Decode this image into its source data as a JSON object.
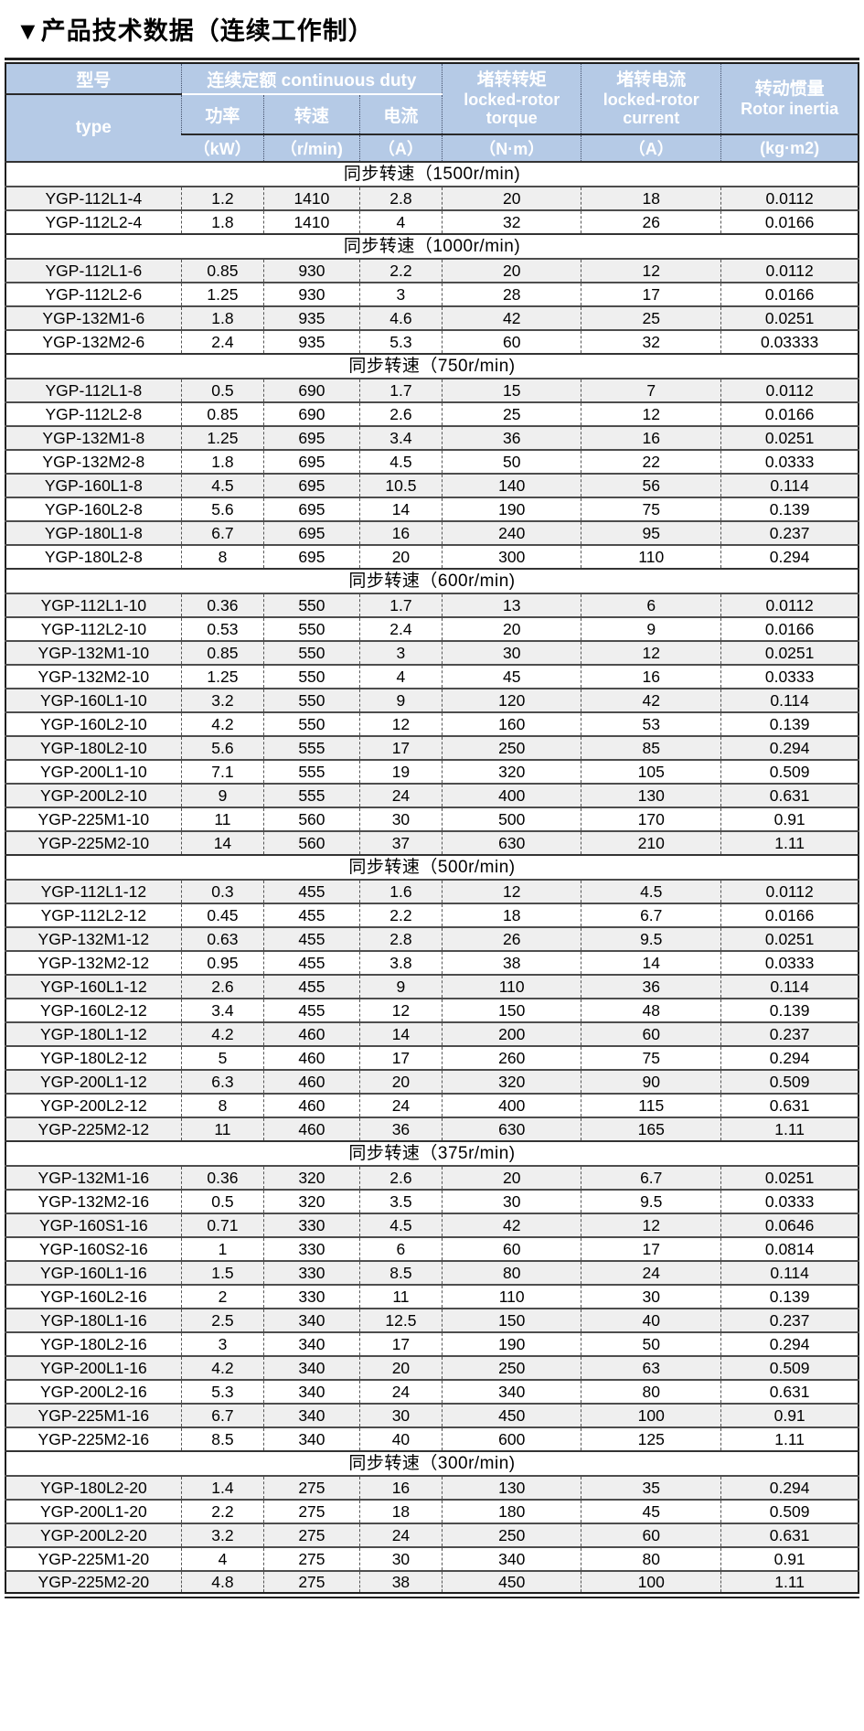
{
  "title": "▼产品技术数据（连续工作制）",
  "colors": {
    "header_bg": "#b5cae6",
    "header_text": "#ffffff",
    "row_shade": "#efefef",
    "row_line": "#4d4d4d",
    "outer_border": "#1f1f1f"
  },
  "table": {
    "header": {
      "model_cn": "型号",
      "model_en": "type",
      "duty_group": "连续定额  continuous duty",
      "power_cn": "功率",
      "speed_cn": "转速",
      "current_cn": "电流",
      "torque_cn": "堵转转矩",
      "torque_en": "locked-rotor torque",
      "lr_current_cn": "堵转电流",
      "lr_current_en": "locked-rotor current",
      "inertia_cn": "转动惯量",
      "inertia_en": "Rotor inertia",
      "units": {
        "power": "（kW）",
        "speed": "（r/min)",
        "current": "（A）",
        "torque": "（N·m）",
        "lr_current": "（A）",
        "inertia": "(kg·m2)"
      }
    },
    "sections": [
      {
        "label": "同步转速（1500r/min)",
        "rows": [
          [
            "YGP-112L1-4",
            "1.2",
            "1410",
            "2.8",
            "20",
            "18",
            "0.0112"
          ],
          [
            "YGP-112L2-4",
            "1.8",
            "1410",
            "4",
            "32",
            "26",
            "0.0166"
          ]
        ]
      },
      {
        "label": "同步转速（1000r/min)",
        "rows": [
          [
            "YGP-112L1-6",
            "0.85",
            "930",
            "2.2",
            "20",
            "12",
            "0.0112"
          ],
          [
            "YGP-112L2-6",
            "1.25",
            "930",
            "3",
            "28",
            "17",
            "0.0166"
          ],
          [
            "YGP-132M1-6",
            "1.8",
            "935",
            "4.6",
            "42",
            "25",
            "0.0251"
          ],
          [
            "YGP-132M2-6",
            "2.4",
            "935",
            "5.3",
            "60",
            "32",
            "0.03333"
          ]
        ]
      },
      {
        "label": "同步转速（750r/min)",
        "rows": [
          [
            "YGP-112L1-8",
            "0.5",
            "690",
            "1.7",
            "15",
            "7",
            "0.0112"
          ],
          [
            "YGP-112L2-8",
            "0.85",
            "690",
            "2.6",
            "25",
            "12",
            "0.0166"
          ],
          [
            "YGP-132M1-8",
            "1.25",
            "695",
            "3.4",
            "36",
            "16",
            "0.0251"
          ],
          [
            "YGP-132M2-8",
            "1.8",
            "695",
            "4.5",
            "50",
            "22",
            "0.0333"
          ],
          [
            "YGP-160L1-8",
            "4.5",
            "695",
            "10.5",
            "140",
            "56",
            "0.114"
          ],
          [
            "YGP-160L2-8",
            "5.6",
            "695",
            "14",
            "190",
            "75",
            "0.139"
          ],
          [
            "YGP-180L1-8",
            "6.7",
            "695",
            "16",
            "240",
            "95",
            "0.237"
          ],
          [
            "YGP-180L2-8",
            "8",
            "695",
            "20",
            "300",
            "110",
            "0.294"
          ]
        ]
      },
      {
        "label": "同步转速（600r/min)",
        "rows": [
          [
            "YGP-112L1-10",
            "0.36",
            "550",
            "1.7",
            "13",
            "6",
            "0.0112"
          ],
          [
            "YGP-112L2-10",
            "0.53",
            "550",
            "2.4",
            "20",
            "9",
            "0.0166"
          ],
          [
            "YGP-132M1-10",
            "0.85",
            "550",
            "3",
            "30",
            "12",
            "0.0251"
          ],
          [
            "YGP-132M2-10",
            "1.25",
            "550",
            "4",
            "45",
            "16",
            "0.0333"
          ],
          [
            "YGP-160L1-10",
            "3.2",
            "550",
            "9",
            "120",
            "42",
            "0.114"
          ],
          [
            "YGP-160L2-10",
            "4.2",
            "550",
            "12",
            "160",
            "53",
            "0.139"
          ],
          [
            "YGP-180L2-10",
            "5.6",
            "555",
            "17",
            "250",
            "85",
            "0.294"
          ],
          [
            "YGP-200L1-10",
            "7.1",
            "555",
            "19",
            "320",
            "105",
            "0.509"
          ],
          [
            "YGP-200L2-10",
            "9",
            "555",
            "24",
            "400",
            "130",
            "0.631"
          ],
          [
            "YGP-225M1-10",
            "11",
            "560",
            "30",
            "500",
            "170",
            "0.91"
          ],
          [
            "YGP-225M2-10",
            "14",
            "560",
            "37",
            "630",
            "210",
            "1.11"
          ]
        ]
      },
      {
        "label": "同步转速（500r/min)",
        "rows": [
          [
            "YGP-112L1-12",
            "0.3",
            "455",
            "1.6",
            "12",
            "4.5",
            "0.0112"
          ],
          [
            "YGP-112L2-12",
            "0.45",
            "455",
            "2.2",
            "18",
            "6.7",
            "0.0166"
          ],
          [
            "YGP-132M1-12",
            "0.63",
            "455",
            "2.8",
            "26",
            "9.5",
            "0.0251"
          ],
          [
            "YGP-132M2-12",
            "0.95",
            "455",
            "3.8",
            "38",
            "14",
            "0.0333"
          ],
          [
            "YGP-160L1-12",
            "2.6",
            "455",
            "9",
            "110",
            "36",
            "0.114"
          ],
          [
            "YGP-160L2-12",
            "3.4",
            "455",
            "12",
            "150",
            "48",
            "0.139"
          ],
          [
            "YGP-180L1-12",
            "4.2",
            "460",
            "14",
            "200",
            "60",
            "0.237"
          ],
          [
            "YGP-180L2-12",
            "5",
            "460",
            "17",
            "260",
            "75",
            "0.294"
          ],
          [
            "YGP-200L1-12",
            "6.3",
            "460",
            "20",
            "320",
            "90",
            "0.509"
          ],
          [
            "YGP-200L2-12",
            "8",
            "460",
            "24",
            "400",
            "115",
            "0.631"
          ],
          [
            "YGP-225M2-12",
            "11",
            "460",
            "36",
            "630",
            "165",
            "1.11"
          ]
        ]
      },
      {
        "label": "同步转速（375r/min)",
        "rows": [
          [
            "YGP-132M1-16",
            "0.36",
            "320",
            "2.6",
            "20",
            "6.7",
            "0.0251"
          ],
          [
            "YGP-132M2-16",
            "0.5",
            "320",
            "3.5",
            "30",
            "9.5",
            "0.0333"
          ],
          [
            "YGP-160S1-16",
            "0.71",
            "330",
            "4.5",
            "42",
            "12",
            "0.0646"
          ],
          [
            "YGP-160S2-16",
            "1",
            "330",
            "6",
            "60",
            "17",
            "0.0814"
          ],
          [
            "YGP-160L1-16",
            "1.5",
            "330",
            "8.5",
            "80",
            "24",
            "0.114"
          ],
          [
            "YGP-160L2-16",
            "2",
            "330",
            "11",
            "110",
            "30",
            "0.139"
          ],
          [
            "YGP-180L1-16",
            "2.5",
            "340",
            "12.5",
            "150",
            "40",
            "0.237"
          ],
          [
            "YGP-180L2-16",
            "3",
            "340",
            "17",
            "190",
            "50",
            "0.294"
          ],
          [
            "YGP-200L1-16",
            "4.2",
            "340",
            "20",
            "250",
            "63",
            "0.509"
          ],
          [
            "YGP-200L2-16",
            "5.3",
            "340",
            "24",
            "340",
            "80",
            "0.631"
          ],
          [
            "YGP-225M1-16",
            "6.7",
            "340",
            "30",
            "450",
            "100",
            "0.91"
          ],
          [
            "YGP-225M2-16",
            "8.5",
            "340",
            "40",
            "600",
            "125",
            "1.11"
          ]
        ]
      },
      {
        "label": "同步转速（300r/min)",
        "rows": [
          [
            "YGP-180L2-20",
            "1.4",
            "275",
            "16",
            "130",
            "35",
            "0.294"
          ],
          [
            "YGP-200L1-20",
            "2.2",
            "275",
            "18",
            "180",
            "45",
            "0.509"
          ],
          [
            "YGP-200L2-20",
            "3.2",
            "275",
            "24",
            "250",
            "60",
            "0.631"
          ],
          [
            "YGP-225M1-20",
            "4",
            "275",
            "30",
            "340",
            "80",
            "0.91"
          ],
          [
            "YGP-225M2-20",
            "4.8",
            "275",
            "38",
            "450",
            "100",
            "1.11"
          ]
        ]
      }
    ]
  }
}
